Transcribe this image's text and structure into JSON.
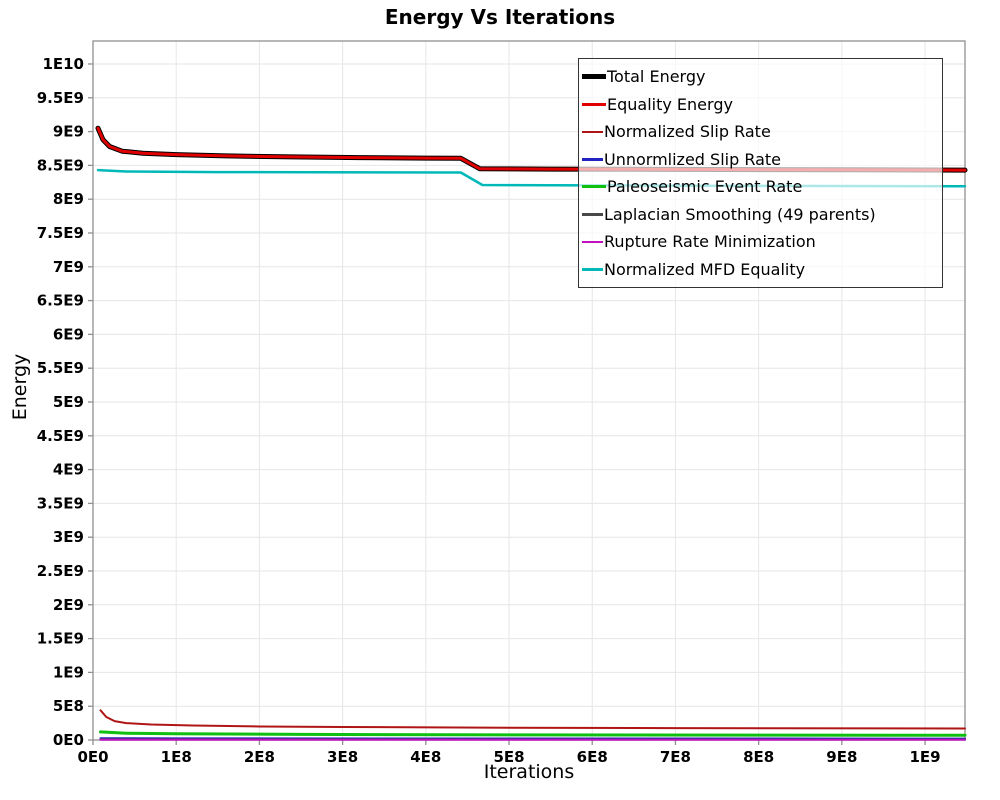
{
  "chart_data": {
    "type": "line",
    "title": "Energy Vs Iterations",
    "xlabel": "Iterations",
    "ylabel": "Energy",
    "xlim": [
      0,
      1048000000.0
    ],
    "ylim": [
      0,
      10340000000.0
    ],
    "grid": true,
    "legend_position": "top-right-inside",
    "x_ticks": [
      {
        "v": 0,
        "label": "0E0"
      },
      {
        "v": 100000000.0,
        "label": "1E8"
      },
      {
        "v": 200000000.0,
        "label": "2E8"
      },
      {
        "v": 300000000.0,
        "label": "3E8"
      },
      {
        "v": 400000000.0,
        "label": "4E8"
      },
      {
        "v": 500000000.0,
        "label": "5E8"
      },
      {
        "v": 600000000.0,
        "label": "6E8"
      },
      {
        "v": 700000000.0,
        "label": "7E8"
      },
      {
        "v": 800000000.0,
        "label": "8E8"
      },
      {
        "v": 900000000.0,
        "label": "9E8"
      },
      {
        "v": 1000000000.0,
        "label": "1E9"
      }
    ],
    "y_ticks": [
      {
        "v": 0,
        "label": "0E0"
      },
      {
        "v": 500000000.0,
        "label": "5E8"
      },
      {
        "v": 1000000000.0,
        "label": "1E9"
      },
      {
        "v": 1500000000.0,
        "label": "1.5E9"
      },
      {
        "v": 2000000000.0,
        "label": "2E9"
      },
      {
        "v": 2500000000.0,
        "label": "2.5E9"
      },
      {
        "v": 3000000000.0,
        "label": "3E9"
      },
      {
        "v": 3500000000.0,
        "label": "3.5E9"
      },
      {
        "v": 4000000000.0,
        "label": "4E9"
      },
      {
        "v": 4500000000.0,
        "label": "4.5E9"
      },
      {
        "v": 5000000000.0,
        "label": "5E9"
      },
      {
        "v": 5500000000.0,
        "label": "5.5E9"
      },
      {
        "v": 6000000000.0,
        "label": "6E9"
      },
      {
        "v": 6500000000.0,
        "label": "6.5E9"
      },
      {
        "v": 7000000000.0,
        "label": "7E9"
      },
      {
        "v": 7500000000.0,
        "label": "7.5E9"
      },
      {
        "v": 8000000000.0,
        "label": "8E9"
      },
      {
        "v": 8500000000.0,
        "label": "8.5E9"
      },
      {
        "v": 9000000000.0,
        "label": "9E9"
      },
      {
        "v": 9500000000.0,
        "label": "9.5E9"
      },
      {
        "v": 10000000000.0,
        "label": "1E10"
      }
    ],
    "series": [
      {
        "name": "Total Energy",
        "color": "#000000",
        "width": 5,
        "points": [
          [
            6000000.0,
            9050000000.0
          ],
          [
            12000000.0,
            8880000000.0
          ],
          [
            20000000.0,
            8780000000.0
          ],
          [
            35000000.0,
            8710000000.0
          ],
          [
            60000000.0,
            8680000000.0
          ],
          [
            100000000.0,
            8660000000.0
          ],
          [
            160000000.0,
            8640000000.0
          ],
          [
            240000000.0,
            8625000000.0
          ],
          [
            320000000.0,
            8615000000.0
          ],
          [
            400000000.0,
            8608000000.0
          ],
          [
            442000000.0,
            8605000000.0
          ],
          [
            465000000.0,
            8450000000.0
          ],
          [
            550000000.0,
            8445000000.0
          ],
          [
            700000000.0,
            8440000000.0
          ],
          [
            900000000.0,
            8435000000.0
          ],
          [
            1048000000.0,
            8430000000.0
          ]
        ]
      },
      {
        "name": "Equality Energy",
        "color": "#e00000",
        "width": 3,
        "points": [
          [
            6000000.0,
            9050000000.0
          ],
          [
            12000000.0,
            8880000000.0
          ],
          [
            20000000.0,
            8780000000.0
          ],
          [
            35000000.0,
            8710000000.0
          ],
          [
            60000000.0,
            8680000000.0
          ],
          [
            100000000.0,
            8660000000.0
          ],
          [
            160000000.0,
            8640000000.0
          ],
          [
            240000000.0,
            8625000000.0
          ],
          [
            320000000.0,
            8615000000.0
          ],
          [
            400000000.0,
            8608000000.0
          ],
          [
            442000000.0,
            8605000000.0
          ],
          [
            465000000.0,
            8450000000.0
          ],
          [
            550000000.0,
            8445000000.0
          ],
          [
            700000000.0,
            8440000000.0
          ],
          [
            900000000.0,
            8435000000.0
          ],
          [
            1048000000.0,
            8430000000.0
          ]
        ]
      },
      {
        "name": "Normalized Slip Rate",
        "color": "#b01515",
        "width": 2,
        "points": [
          [
            9000000.0,
            440000000.0
          ],
          [
            16000000.0,
            340000000.0
          ],
          [
            26000000.0,
            280000000.0
          ],
          [
            40000000.0,
            250000000.0
          ],
          [
            70000000.0,
            230000000.0
          ],
          [
            120000000.0,
            215000000.0
          ],
          [
            200000000.0,
            200000000.0
          ],
          [
            300000000.0,
            192000000.0
          ],
          [
            500000000.0,
            182000000.0
          ],
          [
            700000000.0,
            176000000.0
          ],
          [
            1048000000.0,
            170000000.0
          ]
        ]
      },
      {
        "name": "Unnormlized Slip Rate",
        "color": "#2222c0",
        "width": 2,
        "points": [
          [
            9000000.0,
            26000000.0
          ],
          [
            100000000.0,
            23000000.0
          ],
          [
            500000000.0,
            22000000.0
          ],
          [
            1048000000.0,
            21000000.0
          ]
        ]
      },
      {
        "name": "Paleoseismic Event Rate",
        "color": "#10c010",
        "width": 3,
        "points": [
          [
            9000000.0,
            120000000.0
          ],
          [
            40000000.0,
            100000000.0
          ],
          [
            100000000.0,
            92000000.0
          ],
          [
            250000000.0,
            83000000.0
          ],
          [
            500000000.0,
            76000000.0
          ],
          [
            1048000000.0,
            70000000.0
          ]
        ]
      },
      {
        "name": "Laplacian Smoothing (49 parents)",
        "color": "#484848",
        "width": 2,
        "points": [
          [
            9000000.0,
            9000000.0
          ],
          [
            1048000000.0,
            8000000.0
          ]
        ]
      },
      {
        "name": "Rupture Rate Minimization",
        "color": "#c010c0",
        "width": 2,
        "points": [
          [
            9000000.0,
            5000000.0
          ],
          [
            1048000000.0,
            4000000.0
          ]
        ]
      },
      {
        "name": "Normalized MFD Equality",
        "color": "#00b8b8",
        "width": 2.5,
        "points": [
          [
            6000000.0,
            8430000000.0
          ],
          [
            40000000.0,
            8410000000.0
          ],
          [
            150000000.0,
            8400000000.0
          ],
          [
            442000000.0,
            8395000000.0
          ],
          [
            468000000.0,
            8210000000.0
          ],
          [
            700000000.0,
            8200000000.0
          ],
          [
            1048000000.0,
            8190000000.0
          ]
        ]
      }
    ]
  },
  "colors": {
    "grid": "#e6e6e6",
    "plot_border": "#909090",
    "tick": "#909090",
    "text": "#000000",
    "legend_border": "#333333"
  }
}
